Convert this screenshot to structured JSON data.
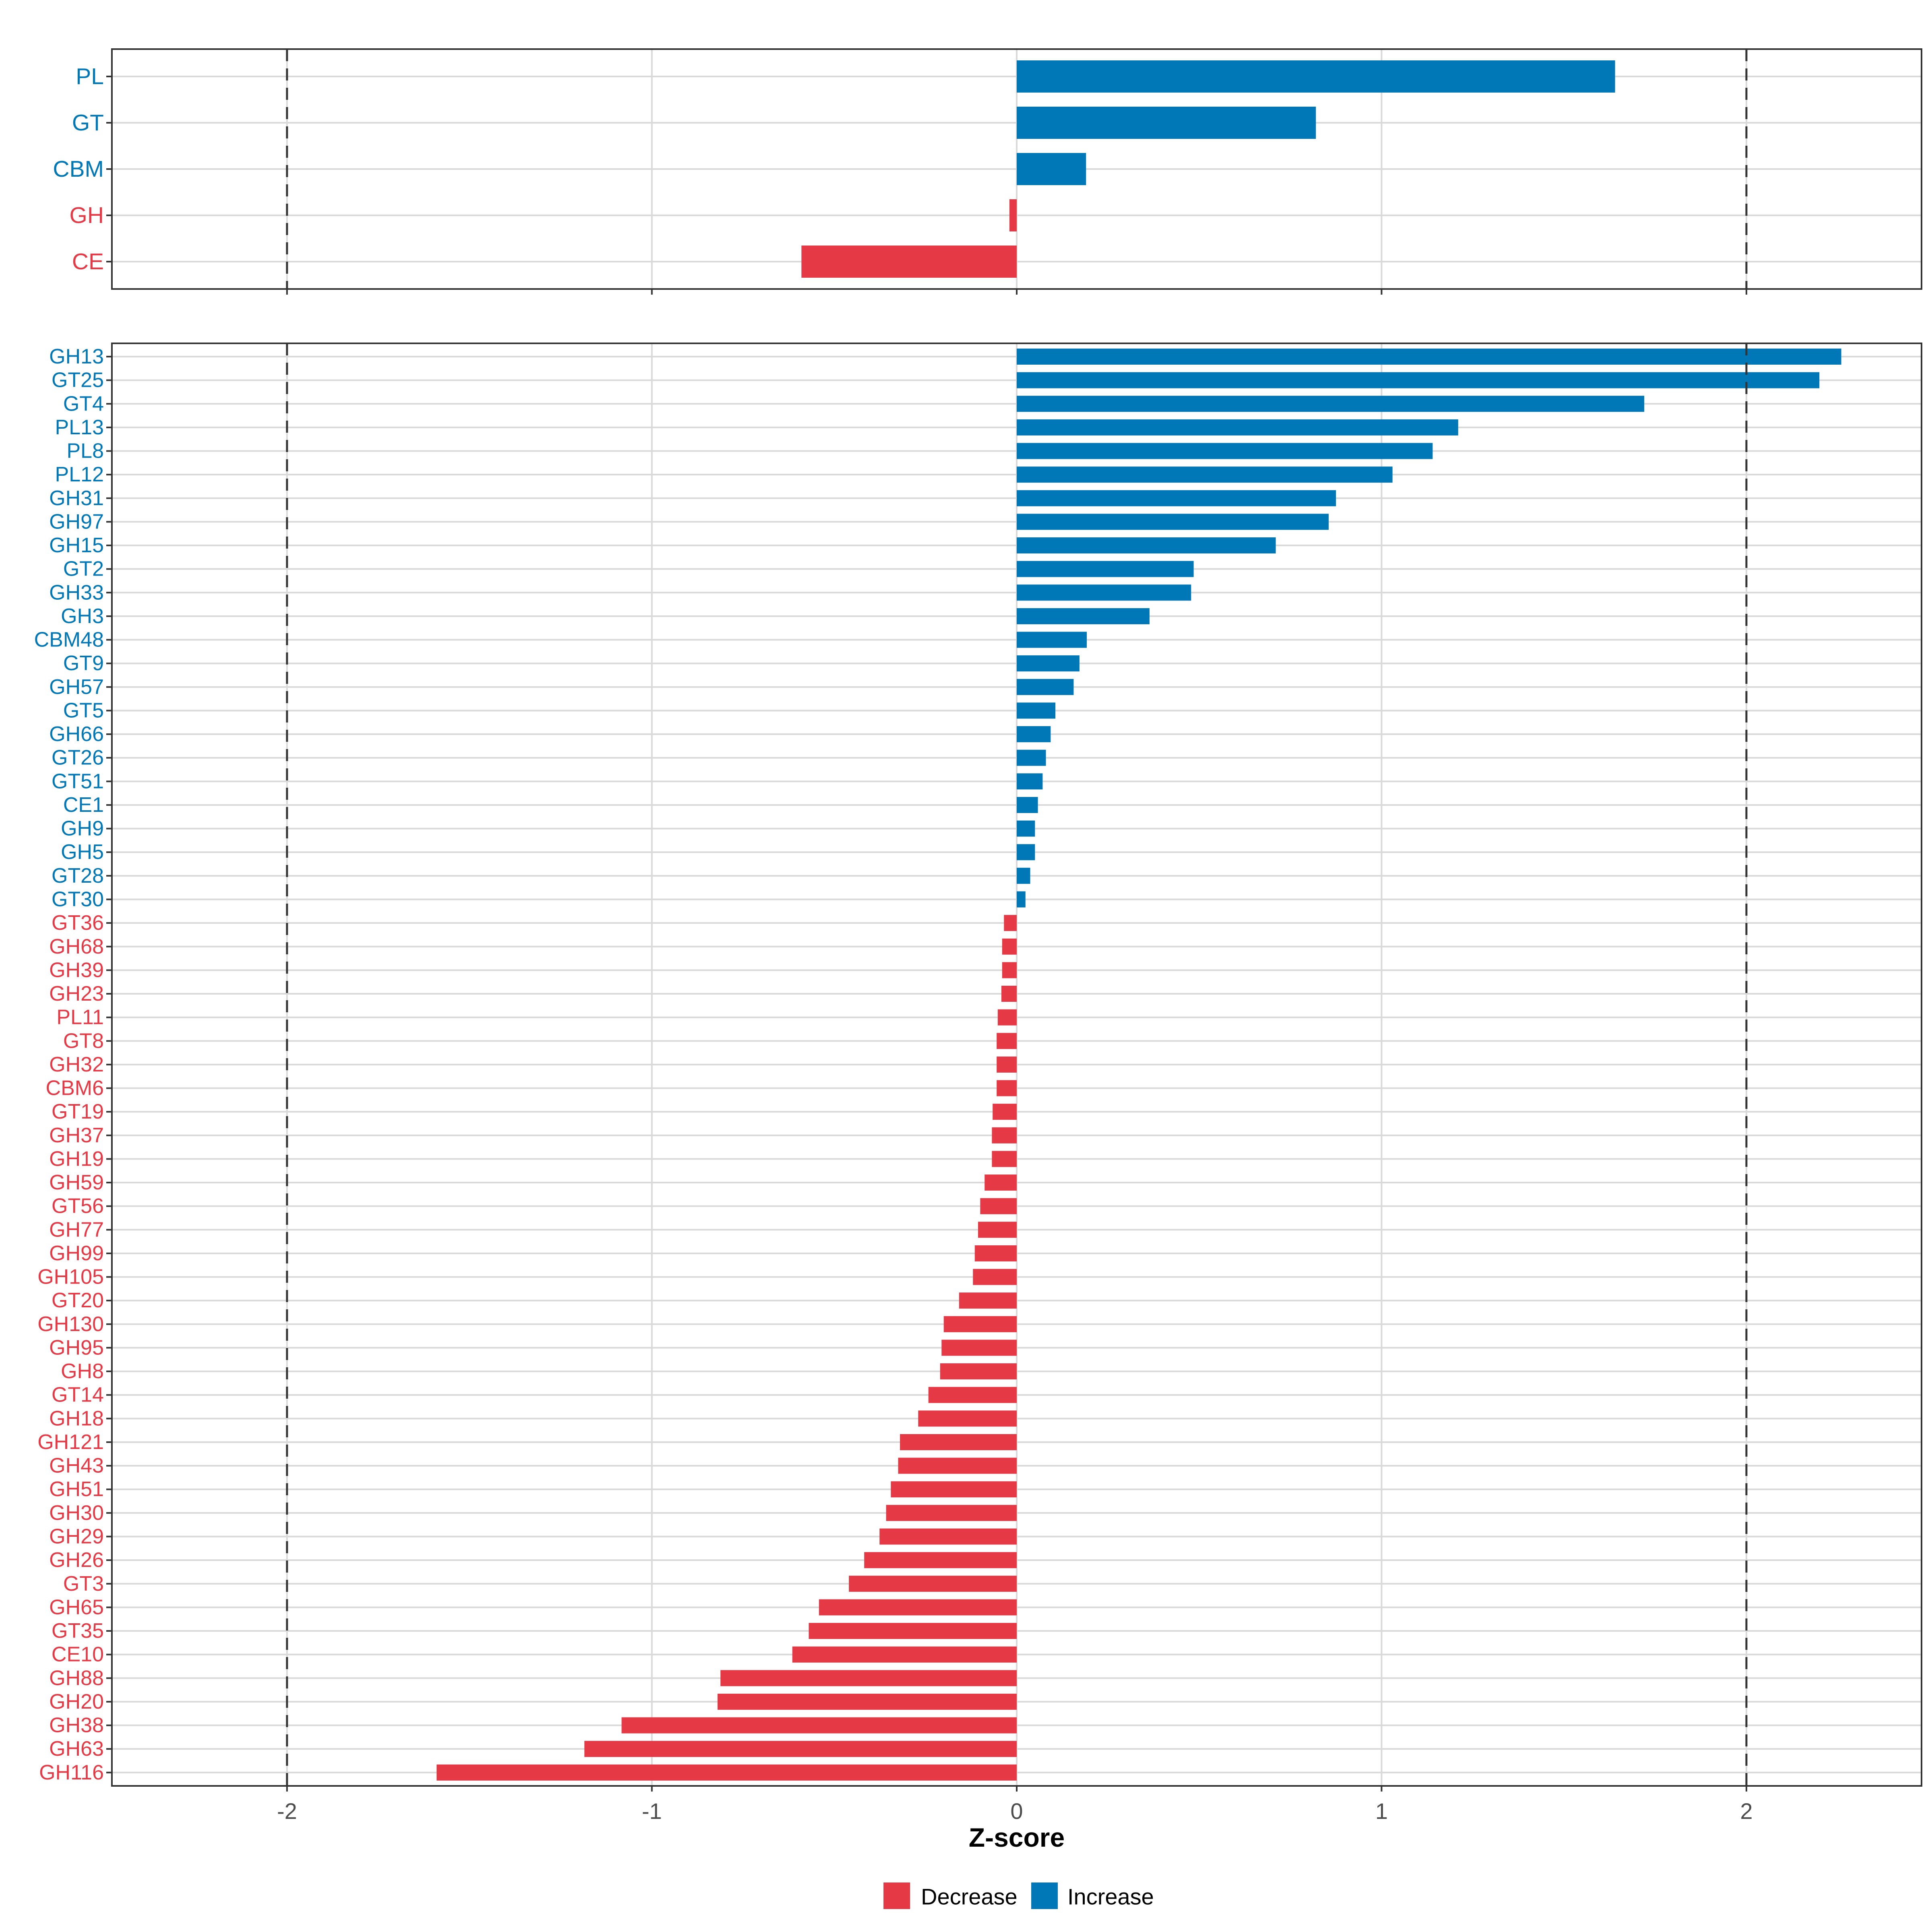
{
  "colors": {
    "decrease": "#E63946",
    "increase": "#0077B6",
    "grid": "#D9D9D9",
    "frame": "#333333",
    "refline": "#333333",
    "tick_text": "#4D4D4D"
  },
  "chart_data": [
    {
      "type": "bar",
      "orientation": "horizontal",
      "panel": "top",
      "categories": [
        "PL",
        "GT",
        "CBM",
        "GH",
        "CE"
      ],
      "values": [
        1.64,
        0.82,
        0.19,
        -0.02,
        -0.59
      ],
      "xlim": [
        -2.48,
        2.48
      ],
      "reference_lines": [
        -2,
        2
      ],
      "grid": true
    },
    {
      "type": "bar",
      "orientation": "horizontal",
      "panel": "bottom",
      "categories": [
        "GH13",
        "GT25",
        "GT4",
        "PL13",
        "PL8",
        "PL12",
        "GH31",
        "GH97",
        "GH15",
        "GT2",
        "GH33",
        "GH3",
        "CBM48",
        "GT9",
        "GH57",
        "GT5",
        "GH66",
        "GT26",
        "GT51",
        "CE1",
        "GH9",
        "GH5",
        "GT28",
        "GT30",
        "GT36",
        "GH68",
        "GH39",
        "GH23",
        "PL11",
        "GT8",
        "GH32",
        "CBM6",
        "GT19",
        "GH37",
        "GH19",
        "GH59",
        "GT56",
        "GH77",
        "GH99",
        "GH105",
        "GT20",
        "GH130",
        "GH95",
        "GH8",
        "GT14",
        "GH18",
        "GH121",
        "GH43",
        "GH51",
        "GH30",
        "GH29",
        "GH26",
        "GT3",
        "GH65",
        "GT35",
        "CE10",
        "GH88",
        "GH20",
        "GH38",
        "GH63",
        "GH116"
      ],
      "values": [
        2.26,
        2.2,
        1.72,
        1.21,
        1.14,
        1.03,
        0.875,
        0.855,
        0.71,
        0.485,
        0.478,
        0.364,
        0.192,
        0.172,
        0.156,
        0.106,
        0.093,
        0.08,
        0.071,
        0.058,
        0.05,
        0.05,
        0.037,
        0.024,
        -0.035,
        -0.04,
        -0.04,
        -0.042,
        -0.052,
        -0.055,
        -0.055,
        -0.055,
        -0.066,
        -0.068,
        -0.068,
        -0.088,
        -0.1,
        -0.106,
        -0.115,
        -0.12,
        -0.158,
        -0.2,
        -0.206,
        -0.21,
        -0.242,
        -0.27,
        -0.32,
        -0.325,
        -0.345,
        -0.358,
        -0.376,
        -0.418,
        -0.46,
        -0.542,
        -0.57,
        -0.615,
        -0.812,
        -0.82,
        -1.083,
        -1.185,
        -1.59
      ],
      "xlim": [
        -2.48,
        2.48
      ],
      "reference_lines": [
        -2,
        2
      ],
      "grid": true,
      "xlabel": "Z-score",
      "xticks": [
        -2,
        -1,
        0,
        1,
        2
      ],
      "xtick_labels": [
        "-2",
        "-1",
        "0",
        "1",
        "2"
      ]
    }
  ],
  "legend": [
    {
      "label": "Decrease",
      "color": "#E63946"
    },
    {
      "label": "Increase",
      "color": "#0077B6"
    }
  ]
}
